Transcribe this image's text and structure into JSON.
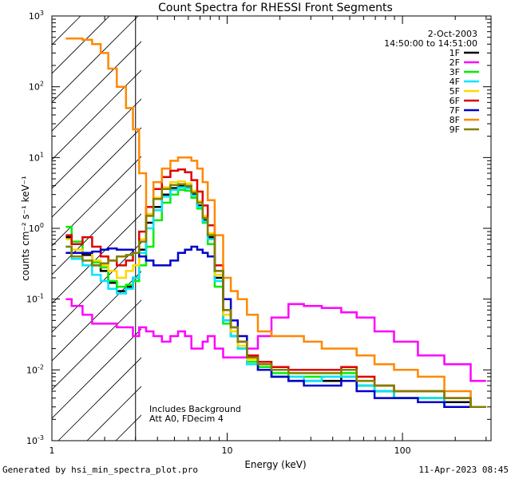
{
  "chart_data": {
    "type": "line",
    "title": "Count Spectra for RHESSI Front Segments",
    "xlabel": "Energy (keV)",
    "ylabel": "counts cm⁻² s⁻¹ keV⁻¹",
    "xscale": "log",
    "yscale": "log",
    "xlim": [
      1,
      320
    ],
    "ylim": [
      0.001,
      1000
    ],
    "x_ticks": [
      {
        "value": 1,
        "label": "1"
      },
      {
        "value": 10,
        "label": "10"
      },
      {
        "value": 100,
        "label": "100"
      }
    ],
    "y_ticks": [
      {
        "value": 0.001,
        "base": "10",
        "exp": "-3"
      },
      {
        "value": 0.01,
        "base": "10",
        "exp": "-2"
      },
      {
        "value": 0.1,
        "base": "10",
        "exp": "-1"
      },
      {
        "value": 1,
        "base": "10",
        "exp": "0"
      },
      {
        "value": 10,
        "base": "10",
        "exp": "1"
      },
      {
        "value": 100,
        "base": "10",
        "exp": "2"
      },
      {
        "value": 1000,
        "base": "10",
        "exp": "3"
      }
    ],
    "date": "2-Oct-2003",
    "time_range": "14:50:00 to 14:51:00",
    "annotation_lines": [
      "Includes Background",
      "Att A0, FDecim 4"
    ],
    "shaded_region": {
      "x_start": 1,
      "x_end": 3
    },
    "series": [
      {
        "name": "1F",
        "color": "#000000",
        "energy": [
          1.2,
          1.4,
          1.6,
          1.8,
          2.0,
          2.2,
          2.5,
          2.8,
          3.0,
          3.3,
          3.6,
          4.0,
          4.5,
          5.0,
          5.5,
          6.0,
          6.5,
          7.0,
          7.5,
          8.0,
          9.0,
          10,
          11,
          12,
          14,
          16,
          20,
          25,
          30,
          40,
          50,
          60,
          80,
          100,
          150,
          200,
          300
        ],
        "values": [
          0.75,
          0.5,
          0.42,
          0.3,
          0.25,
          0.17,
          0.13,
          0.15,
          0.2,
          0.5,
          1.2,
          2.0,
          3.0,
          3.7,
          4.0,
          3.8,
          3.0,
          2.1,
          1.3,
          0.75,
          0.2,
          0.05,
          0.03,
          0.02,
          0.012,
          0.01,
          0.008,
          0.007,
          0.007,
          0.007,
          0.008,
          0.006,
          0.005,
          0.004,
          0.004,
          0.0035,
          0.003
        ]
      },
      {
        "name": "2F",
        "color": "#ff00ff",
        "energy": [
          1.2,
          1.4,
          1.6,
          1.8,
          2.0,
          2.2,
          2.5,
          2.8,
          3.0,
          3.3,
          3.6,
          4.0,
          4.5,
          5.0,
          5.5,
          6.0,
          6.5,
          7.0,
          7.5,
          8.0,
          9.0,
          10,
          11,
          12,
          14,
          16,
          20,
          25,
          30,
          40,
          50,
          60,
          80,
          100,
          150,
          200,
          300
        ],
        "values": [
          0.1,
          0.08,
          0.06,
          0.045,
          0.045,
          0.045,
          0.04,
          0.04,
          0.03,
          0.04,
          0.035,
          0.03,
          0.025,
          0.03,
          0.035,
          0.03,
          0.02,
          0.02,
          0.025,
          0.03,
          0.02,
          0.015,
          0.015,
          0.015,
          0.02,
          0.03,
          0.055,
          0.085,
          0.08,
          0.075,
          0.065,
          0.055,
          0.035,
          0.025,
          0.016,
          0.012,
          0.007
        ]
      },
      {
        "name": "3F",
        "color": "#00ee00",
        "energy": [
          1.2,
          1.4,
          1.6,
          1.8,
          2.0,
          2.2,
          2.5,
          2.8,
          3.0,
          3.3,
          3.6,
          4.0,
          4.5,
          5.0,
          5.5,
          6.0,
          6.5,
          7.0,
          7.5,
          8.0,
          9.0,
          10,
          11,
          12,
          14,
          16,
          20,
          25,
          30,
          40,
          50,
          60,
          80,
          100,
          150,
          200,
          300
        ],
        "values": [
          1.05,
          0.65,
          0.45,
          0.33,
          0.28,
          0.18,
          0.15,
          0.16,
          0.18,
          0.3,
          0.55,
          1.3,
          2.3,
          3.0,
          3.5,
          3.4,
          2.7,
          1.9,
          1.2,
          0.6,
          0.15,
          0.045,
          0.03,
          0.02,
          0.013,
          0.011,
          0.009,
          0.008,
          0.008,
          0.008,
          0.009,
          0.006,
          0.005,
          0.004,
          0.004,
          0.003,
          0.003
        ]
      },
      {
        "name": "4F",
        "color": "#00e5ff",
        "energy": [
          1.2,
          1.4,
          1.6,
          1.8,
          2.0,
          2.2,
          2.5,
          2.8,
          3.0,
          3.3,
          3.6,
          4.0,
          4.5,
          5.0,
          5.5,
          6.0,
          6.5,
          7.0,
          7.5,
          8.0,
          9.0,
          10,
          11,
          12,
          14,
          16,
          20,
          25,
          30,
          40,
          50,
          60,
          80,
          100,
          150,
          200,
          300
        ],
        "values": [
          0.55,
          0.37,
          0.3,
          0.22,
          0.18,
          0.14,
          0.12,
          0.14,
          0.2,
          0.45,
          1.0,
          1.8,
          2.8,
          3.5,
          3.8,
          3.7,
          2.9,
          2.0,
          1.25,
          0.7,
          0.18,
          0.05,
          0.03,
          0.02,
          0.012,
          0.01,
          0.008,
          0.008,
          0.007,
          0.008,
          0.008,
          0.006,
          0.005,
          0.004,
          0.004,
          0.003,
          0.003
        ]
      },
      {
        "name": "5F",
        "color": "#ffd700",
        "energy": [
          1.2,
          1.4,
          1.6,
          1.8,
          2.0,
          2.2,
          2.5,
          2.8,
          3.0,
          3.3,
          3.6,
          4.0,
          4.5,
          5.0,
          5.5,
          6.0,
          6.5,
          7.0,
          7.5,
          8.0,
          9.0,
          10,
          11,
          12,
          14,
          16,
          20,
          25,
          30,
          40,
          50,
          60,
          80,
          100,
          150,
          200,
          300
        ],
        "values": [
          0.7,
          0.5,
          0.45,
          0.35,
          0.3,
          0.25,
          0.2,
          0.25,
          0.3,
          0.7,
          1.6,
          2.7,
          3.8,
          4.5,
          4.6,
          4.3,
          3.4,
          2.4,
          1.5,
          0.85,
          0.22,
          0.06,
          0.035,
          0.022,
          0.014,
          0.012,
          0.01,
          0.009,
          0.009,
          0.009,
          0.01,
          0.007,
          0.006,
          0.005,
          0.005,
          0.004,
          0.003
        ]
      },
      {
        "name": "6F",
        "color": "#dd0000",
        "energy": [
          1.2,
          1.4,
          1.6,
          1.8,
          2.0,
          2.2,
          2.5,
          2.8,
          3.0,
          3.3,
          3.6,
          4.0,
          4.5,
          5.0,
          5.5,
          6.0,
          6.5,
          7.0,
          7.5,
          8.0,
          9.0,
          10,
          11,
          12,
          14,
          16,
          20,
          25,
          30,
          40,
          50,
          60,
          80,
          100,
          150,
          200,
          300
        ],
        "values": [
          0.8,
          0.6,
          0.75,
          0.55,
          0.4,
          0.35,
          0.3,
          0.35,
          0.45,
          0.9,
          2.0,
          3.6,
          5.3,
          6.5,
          6.8,
          6.2,
          4.8,
          3.3,
          2.1,
          1.1,
          0.3,
          0.07,
          0.04,
          0.025,
          0.016,
          0.013,
          0.011,
          0.01,
          0.01,
          0.01,
          0.011,
          0.008,
          0.006,
          0.005,
          0.005,
          0.004,
          0.003
        ]
      },
      {
        "name": "7F",
        "color": "#0000cc",
        "energy": [
          1.2,
          1.4,
          1.6,
          1.8,
          2.0,
          2.2,
          2.5,
          2.8,
          3.0,
          3.3,
          3.6,
          4.0,
          4.5,
          5.0,
          5.5,
          6.0,
          6.5,
          7.0,
          7.5,
          8.0,
          9.0,
          10,
          11,
          12,
          14,
          16,
          20,
          25,
          30,
          40,
          50,
          60,
          80,
          100,
          150,
          200,
          300
        ],
        "values": [
          0.45,
          0.45,
          0.45,
          0.47,
          0.5,
          0.52,
          0.5,
          0.5,
          0.45,
          0.4,
          0.35,
          0.3,
          0.3,
          0.35,
          0.45,
          0.5,
          0.55,
          0.5,
          0.45,
          0.4,
          0.25,
          0.1,
          0.05,
          0.03,
          0.015,
          0.01,
          0.008,
          0.007,
          0.006,
          0.006,
          0.007,
          0.005,
          0.004,
          0.004,
          0.0035,
          0.003,
          0.003
        ]
      },
      {
        "name": "8F",
        "color": "#ff8800",
        "energy": [
          1.2,
          1.4,
          1.6,
          1.8,
          2.0,
          2.2,
          2.5,
          2.8,
          3.0,
          3.3,
          3.6,
          4.0,
          4.5,
          5.0,
          5.5,
          6.0,
          6.5,
          7.0,
          7.5,
          8.0,
          9.0,
          10,
          11,
          12,
          14,
          16,
          20,
          25,
          30,
          40,
          50,
          60,
          80,
          100,
          150,
          200,
          300
        ],
        "values": [
          480,
          480,
          460,
          400,
          300,
          180,
          100,
          50,
          25,
          6,
          1.5,
          4.5,
          7,
          9,
          10,
          10,
          9,
          7,
          4.5,
          2.5,
          0.8,
          0.2,
          0.13,
          0.1,
          0.06,
          0.035,
          0.03,
          0.03,
          0.025,
          0.02,
          0.02,
          0.016,
          0.012,
          0.01,
          0.008,
          0.005,
          0.003
        ]
      },
      {
        "name": "9F",
        "color": "#808000",
        "energy": [
          1.2,
          1.4,
          1.6,
          1.8,
          2.0,
          2.2,
          2.5,
          2.8,
          3.0,
          3.3,
          3.6,
          4.0,
          4.5,
          5.0,
          5.5,
          6.0,
          6.5,
          7.0,
          7.5,
          8.0,
          9.0,
          10,
          11,
          12,
          14,
          16,
          20,
          25,
          30,
          40,
          50,
          60,
          80,
          100,
          150,
          200,
          300
        ],
        "values": [
          0.55,
          0.4,
          0.35,
          0.3,
          0.32,
          0.35,
          0.4,
          0.42,
          0.45,
          0.65,
          1.5,
          2.6,
          3.6,
          4.1,
          4.2,
          4.0,
          3.2,
          2.3,
          1.4,
          0.8,
          0.25,
          0.07,
          0.04,
          0.025,
          0.015,
          0.012,
          0.01,
          0.009,
          0.009,
          0.009,
          0.01,
          0.007,
          0.006,
          0.005,
          0.005,
          0.004,
          0.003
        ]
      }
    ]
  },
  "footer": {
    "generated": "Generated by hsi_min_spectra_plot.pro",
    "timestamp": "11-Apr-2023 08:45"
  }
}
